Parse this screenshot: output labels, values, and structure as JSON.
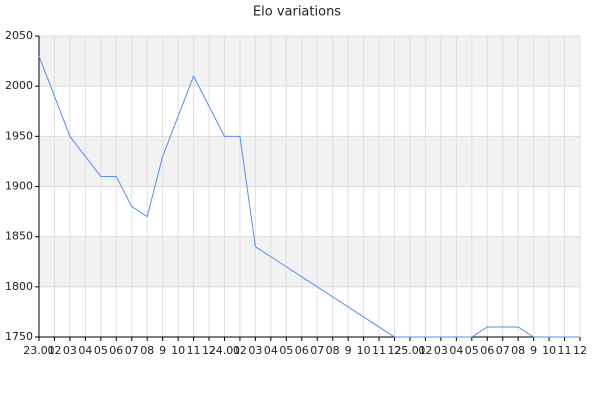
{
  "chart_data": {
    "type": "line",
    "title": "Elo variations",
    "categories": [
      "23.01",
      "02",
      "03",
      "04",
      "05",
      "06",
      "07",
      "08",
      "9",
      "10",
      "11",
      "12",
      "24.01",
      "02",
      "03",
      "04",
      "05",
      "06",
      "07",
      "08",
      "9",
      "10",
      "11",
      "12",
      "25.01",
      "02",
      "03",
      "04",
      "05",
      "06",
      "07",
      "08",
      "9",
      "10",
      "11",
      "12"
    ],
    "series": [
      {
        "name": "Elo",
        "color": "#5a8ee8",
        "values": [
          2030,
          1990,
          1950,
          1930,
          1910,
          1910,
          1880,
          1870,
          1930,
          1970,
          2010,
          1980,
          1950,
          1950,
          1840,
          1830,
          1820,
          1810,
          1800,
          1790,
          1780,
          1770,
          1760,
          1750,
          1750,
          1750,
          1750,
          1750,
          1750,
          1760,
          1760,
          1760,
          1750,
          1750,
          1750,
          1750
        ]
      }
    ],
    "ylim": [
      1750,
      2050
    ],
    "yticks": [
      1750,
      1800,
      1850,
      1900,
      1950,
      2000,
      2050
    ],
    "grid": true
  }
}
